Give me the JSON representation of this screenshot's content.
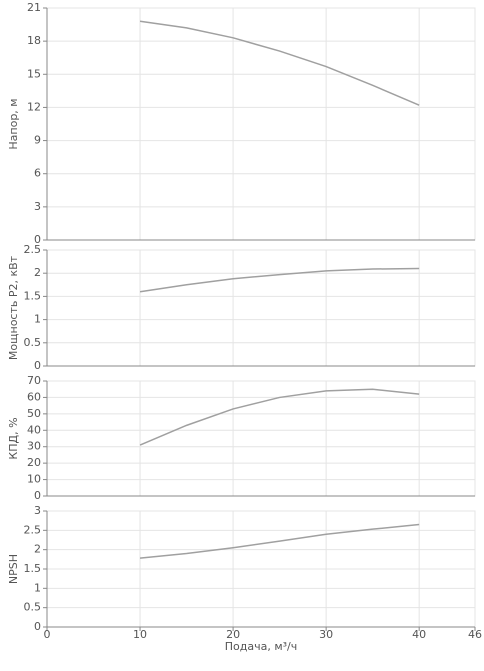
{
  "chart_data": [
    {
      "type": "line",
      "ylabel": "Напор, м",
      "x": [
        10,
        15,
        20,
        25,
        30,
        35,
        40
      ],
      "series": [
        {
          "color": "#a0a0a0",
          "values": [
            19.8,
            19.2,
            18.3,
            17.1,
            15.7,
            14.0,
            12.2
          ]
        }
      ],
      "xlim": [
        0,
        46
      ],
      "xticks": [
        0,
        10,
        20,
        30,
        40,
        46
      ],
      "ylim": [
        0,
        21
      ],
      "yticks": [
        0,
        3,
        6,
        9,
        12,
        15,
        18,
        21
      ],
      "grid": true
    },
    {
      "type": "line",
      "ylabel": "Мощность P2, кВт",
      "x": [
        10,
        15,
        20,
        25,
        30,
        35,
        40
      ],
      "series": [
        {
          "color": "#a0a0a0",
          "values": [
            1.6,
            1.75,
            1.88,
            1.97,
            2.05,
            2.09,
            2.1
          ]
        }
      ],
      "xlim": [
        0,
        46
      ],
      "xticks": [
        0,
        10,
        20,
        30,
        40,
        46
      ],
      "ylim": [
        0,
        2.5
      ],
      "yticks": [
        0,
        0.5,
        1,
        1.5,
        2,
        2.5
      ],
      "grid": true
    },
    {
      "type": "line",
      "ylabel": "КПД, %",
      "x": [
        10,
        15,
        20,
        25,
        30,
        35,
        40
      ],
      "series": [
        {
          "color": "#a0a0a0",
          "values": [
            31,
            43,
            53,
            60,
            64,
            65,
            62
          ]
        }
      ],
      "xlim": [
        0,
        46
      ],
      "xticks": [
        0,
        10,
        20,
        30,
        40,
        46
      ],
      "ylim": [
        0,
        70
      ],
      "yticks": [
        0,
        10,
        20,
        30,
        40,
        50,
        60,
        70
      ],
      "grid": true
    },
    {
      "type": "line",
      "ylabel": "NPSH",
      "xlabel": "Подача, м³/ч",
      "x": [
        10,
        15,
        20,
        25,
        30,
        35,
        40
      ],
      "series": [
        {
          "color": "#a0a0a0",
          "values": [
            1.78,
            1.9,
            2.05,
            2.22,
            2.4,
            2.53,
            2.65
          ]
        }
      ],
      "xlim": [
        0,
        46
      ],
      "xticks": [
        0,
        10,
        20,
        30,
        40,
        46
      ],
      "ylim": [
        0,
        3
      ],
      "yticks": [
        0,
        0.5,
        1,
        1.5,
        2,
        2.5,
        3
      ],
      "grid": true
    }
  ]
}
